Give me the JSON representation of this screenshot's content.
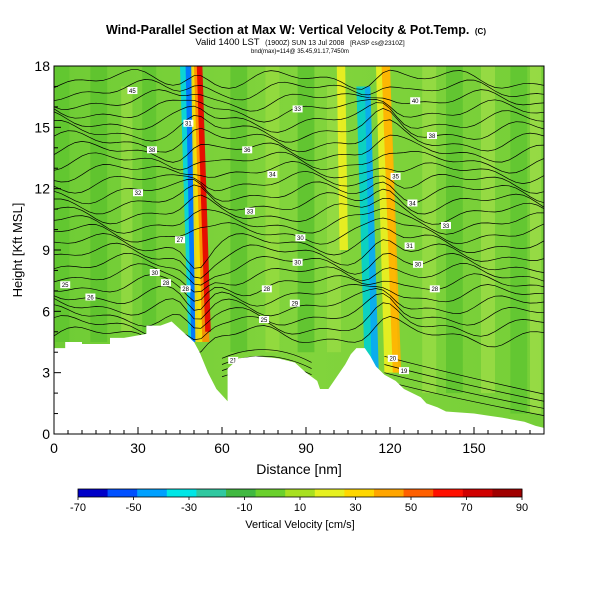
{
  "chart_data": {
    "type": "heatmap",
    "title": "Wind-Parallel Section at Max W: Vertical Velocity & Pot.Temp.",
    "title_mark": "(C)",
    "subtitle_main": "Valid 1400 LST",
    "subtitle_detail": "(1900Z) SUN 13 Jul 2008",
    "subtitle_source": "[RASP cs@2310Z]",
    "subtitle_line2": "bnd(max)=114@ 35.45,91.17,7450m",
    "xlabel": "Distance [nm]",
    "ylabel": "Height [Kft MSL]",
    "xlim": [
      0,
      175
    ],
    "ylim": [
      0,
      18
    ],
    "x_ticks": [
      0,
      30,
      60,
      90,
      120,
      150
    ],
    "y_ticks": [
      0,
      3,
      6,
      9,
      12,
      15,
      18
    ],
    "colorbar": {
      "label": "Vertical Velocity [cm/s]",
      "ticks": [
        -70,
        -50,
        -30,
        -10,
        10,
        30,
        50,
        70,
        90
      ],
      "range": [
        -70,
        90
      ],
      "colors": [
        "#0000c8",
        "#0050ff",
        "#00a0ff",
        "#00e6e6",
        "#30c8a0",
        "#40b840",
        "#6ad02c",
        "#a8e020",
        "#e6f020",
        "#ffd700",
        "#ffa500",
        "#ff6000",
        "#ff1000",
        "#d00000",
        "#a00000"
      ]
    },
    "background_color": "#7dd13d",
    "features": [
      {
        "name": "updraft",
        "x_center": 54,
        "y_range": [
          4.5,
          18
        ],
        "w_max": 90
      },
      {
        "name": "downdraft",
        "x_center": 49,
        "y_range": [
          4.5,
          18
        ],
        "w_min": -70
      },
      {
        "name": "updraft",
        "x_center": 122,
        "y_range": [
          3,
          18
        ],
        "w_max": 50
      },
      {
        "name": "downdraft",
        "x_center": 115,
        "y_range": [
          3,
          16
        ],
        "w_min": -40
      }
    ],
    "contour_variable": "Potential Temperature",
    "contour_labels": [
      {
        "x": 28,
        "y": 16.8,
        "text": "45"
      },
      {
        "x": 48,
        "y": 15.2,
        "text": "31"
      },
      {
        "x": 35,
        "y": 13.9,
        "text": "38"
      },
      {
        "x": 30,
        "y": 11.8,
        "text": "32"
      },
      {
        "x": 45,
        "y": 9.5,
        "text": "27"
      },
      {
        "x": 36,
        "y": 7.9,
        "text": "30"
      },
      {
        "x": 40,
        "y": 7.4,
        "text": "28"
      },
      {
        "x": 47,
        "y": 7.1,
        "text": "28"
      },
      {
        "x": 4,
        "y": 7.3,
        "text": "25"
      },
      {
        "x": 13,
        "y": 6.7,
        "text": "26"
      },
      {
        "x": 87,
        "y": 15.9,
        "text": "33"
      },
      {
        "x": 69,
        "y": 13.9,
        "text": "36"
      },
      {
        "x": 78,
        "y": 12.7,
        "text": "34"
      },
      {
        "x": 70,
        "y": 10.9,
        "text": "33"
      },
      {
        "x": 88,
        "y": 9.6,
        "text": "30"
      },
      {
        "x": 87,
        "y": 8.4,
        "text": "30"
      },
      {
        "x": 76,
        "y": 7.1,
        "text": "28"
      },
      {
        "x": 86,
        "y": 6.4,
        "text": "29"
      },
      {
        "x": 75,
        "y": 5.6,
        "text": "25"
      },
      {
        "x": 64,
        "y": 3.6,
        "text": "21"
      },
      {
        "x": 129,
        "y": 16.3,
        "text": "40"
      },
      {
        "x": 135,
        "y": 14.6,
        "text": "38"
      },
      {
        "x": 122,
        "y": 12.6,
        "text": "35"
      },
      {
        "x": 128,
        "y": 11.3,
        "text": "34"
      },
      {
        "x": 140,
        "y": 10.2,
        "text": "33"
      },
      {
        "x": 127,
        "y": 9.2,
        "text": "31"
      },
      {
        "x": 130,
        "y": 8.3,
        "text": "30"
      },
      {
        "x": 136,
        "y": 7.1,
        "text": "28"
      },
      {
        "x": 121,
        "y": 3.7,
        "text": "20"
      },
      {
        "x": 125,
        "y": 3.1,
        "text": "19"
      }
    ]
  }
}
